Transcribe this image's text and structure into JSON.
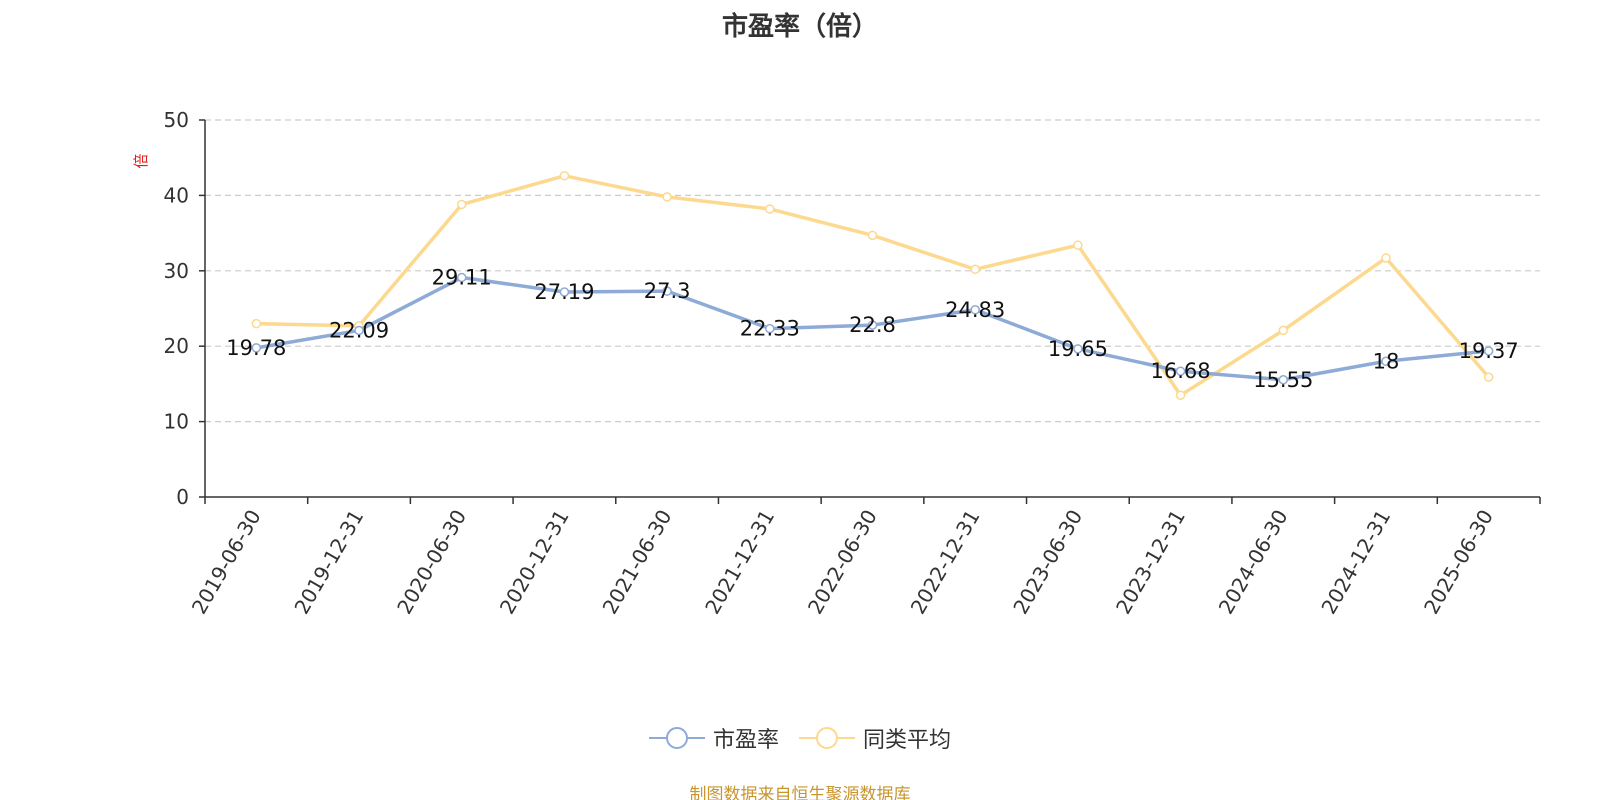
{
  "title": "市盈率（倍）",
  "source_note": "制图数据来自恒生聚源数据库",
  "colors": {
    "pe_series": "#8eaad6",
    "avg_series": "#fcd98e",
    "y_unit": "#e02020",
    "source": "#c8952e"
  },
  "legend": [
    {
      "label": "市盈率"
    },
    {
      "label": "同类平均"
    }
  ],
  "chart_data": {
    "type": "line",
    "title": "市盈率（倍）",
    "ylabel": "倍",
    "xlabel": "",
    "ylim": [
      0,
      50
    ],
    "yticks": [
      0,
      10,
      20,
      30,
      40,
      50
    ],
    "grid": true,
    "legend_position": "bottom",
    "categories": [
      "2019-06-30",
      "2019-12-31",
      "2020-06-30",
      "2020-12-31",
      "2021-06-30",
      "2021-12-31",
      "2022-06-30",
      "2022-12-31",
      "2023-06-30",
      "2023-12-31",
      "2024-06-30",
      "2024-12-31",
      "2025-06-30"
    ],
    "series": [
      {
        "name": "市盈率",
        "values": [
          19.78,
          22.09,
          29.11,
          27.19,
          27.3,
          22.33,
          22.8,
          24.83,
          19.65,
          16.68,
          15.55,
          18,
          19.37
        ],
        "labels": [
          "19.78",
          "22.09",
          "29.11",
          "27.19",
          "27.3",
          "22.33",
          "22.8",
          "24.83",
          "19.65",
          "16.68",
          "15.55",
          "18",
          "19.37"
        ]
      },
      {
        "name": "同类平均",
        "values": [
          23.0,
          22.7,
          38.8,
          42.6,
          39.8,
          38.2,
          34.7,
          30.2,
          33.4,
          13.5,
          22.1,
          31.7,
          15.9
        ]
      }
    ]
  }
}
